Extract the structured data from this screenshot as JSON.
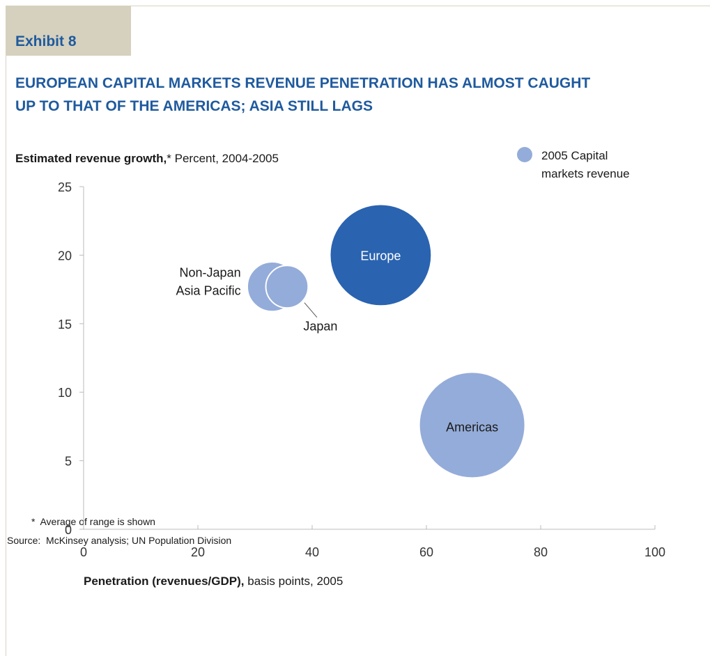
{
  "chart_data": {
    "type": "bubble",
    "exhibit": "Exhibit 8",
    "title": [
      "EUROPEAN CAPITAL MARKETS REVENUE PENETRATION HAS ALMOST CAUGHT",
      "UP TO THAT OF THE AMERICAS; ASIA STILL LAGS"
    ],
    "y_label_bold": "Estimated revenue growth,",
    "y_label_rest": "* Percent, 2004-2005",
    "x_label_bold": "Penetration (revenues/GDP),",
    "x_label_rest": " basis points, 2005",
    "legend": [
      "2005 Capital",
      "markets revenue"
    ],
    "legend_color": "#94acd9",
    "points": [
      {
        "label": [
          "Europe"
        ],
        "x": 52,
        "y": 20,
        "size": 92,
        "color": "#2a63b0"
      },
      {
        "label": [
          "Americas"
        ],
        "x": 68,
        "y": 7.6,
        "size": 100,
        "color": "#94acd9"
      },
      {
        "label": [
          "Non-Japan",
          "Asia Pacific"
        ],
        "x": 33,
        "y": 17.7,
        "size": 22,
        "color": "#94acd9"
      },
      {
        "label": [
          "Japan"
        ],
        "x": 35.6,
        "y": 17.7,
        "size": 16,
        "color": "#94acd9"
      }
    ],
    "xlim": [
      0,
      100
    ],
    "xticks": [
      0,
      20,
      40,
      60,
      80,
      100
    ],
    "ylim": [
      0,
      25
    ],
    "yticks": [
      0,
      5,
      10,
      15,
      20,
      25
    ],
    "footnote": "*  Average of range is shown",
    "source": "Source:  McKinsey analysis; UN Population Division"
  }
}
